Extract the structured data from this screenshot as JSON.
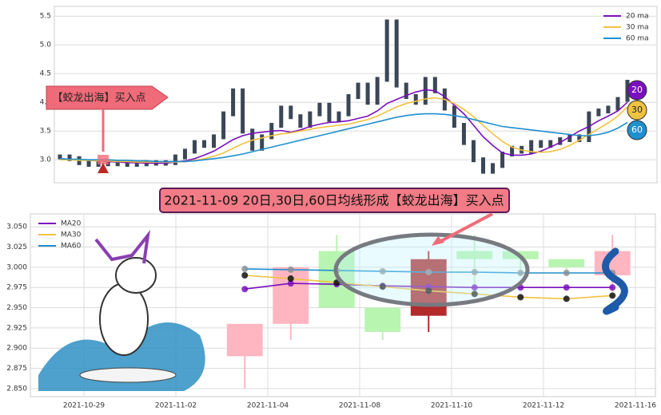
{
  "chart_data": [
    {
      "type": "line",
      "grid": true,
      "legend": "upper right",
      "categories": [
        null,
        null,
        null,
        null,
        null,
        null,
        null,
        null,
        null,
        null,
        null,
        null,
        null,
        null,
        null,
        null,
        null,
        null,
        null,
        null,
        null,
        null,
        null,
        null,
        null,
        null,
        null,
        null,
        null,
        null,
        null,
        null,
        null,
        null,
        null,
        null,
        null,
        null,
        null,
        null,
        null,
        null,
        null,
        null,
        null,
        null,
        null,
        null,
        null,
        null,
        null,
        null,
        null,
        null,
        null,
        null,
        null,
        null,
        null,
        null
      ],
      "values": [
        3.05,
        3.02,
        2.95,
        2.92,
        2.93,
        2.95,
        2.93,
        2.92,
        2.93,
        2.95,
        2.94,
        2.95,
        3.05,
        3.15,
        3.3,
        3.25,
        3.4,
        3.8,
        4.2,
        3.5,
        3.2,
        3.4,
        3.6,
        3.9,
        3.75,
        3.6,
        3.8,
        3.95,
        3.7,
        3.8,
        4.1,
        4.3,
        4.0,
        4.4,
        5.4,
        4.3,
        4.1,
        4.0,
        4.4,
        4.2,
        3.9,
        3.6,
        3.3,
        3.0,
        2.8,
        2.9,
        3.1,
        3.2,
        3.15,
        3.3,
        3.25,
        3.3,
        3.35,
        3.4,
        3.35,
        3.8,
        3.85,
        3.9,
        4.05,
        4.35
      ],
      "color": "#3b4656",
      "series": [
        {
          "name": "20 ma",
          "color": "#7a10bd",
          "values": [
            3.02,
            3.01,
            3.0,
            2.99,
            2.98,
            2.97,
            2.96,
            2.95,
            2.95,
            2.94,
            2.94,
            2.94,
            2.96,
            2.98,
            3.02,
            3.08,
            3.15,
            3.25,
            3.35,
            3.42,
            3.46,
            3.48,
            3.5,
            3.51,
            3.48,
            3.52,
            3.58,
            3.62,
            3.65,
            3.66,
            3.68,
            3.72,
            3.76,
            3.85,
            3.98,
            4.05,
            4.12,
            4.18,
            4.22,
            4.2,
            4.1,
            3.95,
            3.8,
            3.6,
            3.4,
            3.25,
            3.12,
            3.08,
            3.08,
            3.1,
            3.15,
            3.22,
            3.3,
            3.4,
            3.5,
            3.58,
            3.68,
            3.76,
            3.85,
            4.0
          ]
        },
        {
          "name": "30 ma",
          "color": "#f0c23e",
          "values": [
            3.0,
            3.0,
            2.99,
            2.99,
            2.98,
            2.98,
            2.97,
            2.97,
            2.96,
            2.96,
            2.96,
            2.96,
            2.96,
            2.97,
            2.99,
            3.02,
            3.06,
            3.12,
            3.2,
            3.28,
            3.34,
            3.38,
            3.42,
            3.45,
            3.47,
            3.5,
            3.53,
            3.56,
            3.58,
            3.6,
            3.62,
            3.66,
            3.7,
            3.76,
            3.84,
            3.92,
            3.98,
            4.02,
            4.06,
            4.08,
            4.05,
            3.98,
            3.88,
            3.75,
            3.6,
            3.45,
            3.32,
            3.22,
            3.17,
            3.14,
            3.13,
            3.14,
            3.18,
            3.25,
            3.34,
            3.44,
            3.54,
            3.64,
            3.76,
            3.92
          ]
        },
        {
          "name": "60 ma",
          "color": "#1f8fcf",
          "values": [
            3.02,
            3.01,
            3.01,
            3.0,
            3.0,
            3.0,
            2.99,
            2.99,
            2.98,
            2.98,
            2.97,
            2.97,
            2.97,
            2.97,
            2.98,
            3.0,
            3.02,
            3.04,
            3.07,
            3.1,
            3.14,
            3.18,
            3.22,
            3.26,
            3.3,
            3.34,
            3.38,
            3.42,
            3.46,
            3.5,
            3.54,
            3.58,
            3.62,
            3.66,
            3.7,
            3.74,
            3.77,
            3.79,
            3.8,
            3.8,
            3.79,
            3.77,
            3.74,
            3.7,
            3.66,
            3.62,
            3.58,
            3.56,
            3.54,
            3.52,
            3.5,
            3.48,
            3.46,
            3.44,
            3.42,
            3.42,
            3.44,
            3.48,
            3.55,
            3.65
          ]
        }
      ],
      "ylim": [
        2.6,
        5.67
      ],
      "yticks": [
        {
          "value": 3,
          "label": "3.0"
        },
        3.5,
        {
          "value": 4,
          "label": "4.0"
        },
        4.5,
        {
          "value": 5,
          "label": "5.0"
        },
        5.5
      ],
      "annotations": {
        "signal": "【蛟龙出海】买入点",
        "badges": [
          "20",
          "30",
          "60"
        ],
        "banner": "2021-11-09 20日,30日,60日均线形成【蛟龙出海】买入点"
      }
    },
    {
      "type": "candlestick",
      "grid": true,
      "legend": "upper left",
      "categories": [
        "2021-10-29",
        null,
        "2021-11-02",
        null,
        "2021-11-04",
        null,
        "2021-11-08",
        null,
        "2021-11-10",
        null,
        "2021-11-12",
        null,
        "2021-11-16"
      ],
      "open": [
        null,
        null,
        null,
        2.89,
        2.93,
        3.02,
        2.95,
        2.94,
        3.02,
        3.02,
        3.01,
        2.99,
        null
      ],
      "high": [
        null,
        null,
        null,
        2.93,
        3.0,
        3.04,
        2.95,
        3.02,
        3.04,
        3.02,
        3.01,
        3.04,
        null
      ],
      "low": [
        null,
        null,
        null,
        2.85,
        2.91,
        2.95,
        2.91,
        2.92,
        2.97,
        2.99,
        2.99,
        2.97,
        null
      ],
      "close": [
        null,
        null,
        null,
        2.93,
        3.0,
        2.95,
        2.92,
        3.01,
        3.01,
        3.01,
        3.0,
        3.02,
        null
      ],
      "candle_colors": [
        null,
        null,
        null,
        "#ffb6c1",
        "#ffb6c1",
        "#b8f5b0",
        "#b8f5b0",
        "#b22a2a",
        "#b8f5b0",
        "#b8f5b0",
        "#b8f5b0",
        "#ffb6c1",
        null
      ],
      "series": [
        {
          "name": "MA20",
          "color": "#7a10bd",
          "values": [
            null,
            null,
            null,
            2.973,
            2.98,
            2.979,
            2.977,
            2.976,
            2.975,
            2.975,
            2.975,
            2.975,
            null
          ]
        },
        {
          "name": "MA30",
          "color": "#f0c23e",
          "values": [
            null,
            null,
            null,
            2.99,
            2.986,
            2.981,
            2.976,
            2.971,
            2.967,
            2.963,
            2.961,
            2.965,
            null
          ]
        },
        {
          "name": "MA60",
          "color": "#1f8fcf",
          "values": [
            null,
            null,
            null,
            2.998,
            2.997,
            2.996,
            2.995,
            2.994,
            2.994,
            2.993,
            2.993,
            2.993,
            null
          ]
        }
      ],
      "ylim": [
        2.84,
        3.066
      ],
      "yticks": [
        {
          "value": 2.85,
          "label": "2.850"
        },
        {
          "value": 2.875,
          "label": "2.875"
        },
        {
          "value": 2.9,
          "label": "2.900"
        },
        {
          "value": 2.925,
          "label": "2.925"
        },
        {
          "value": 2.95,
          "label": "2.950"
        },
        {
          "value": 2.975,
          "label": "2.975"
        },
        {
          "value": 3,
          "label": "3.000"
        },
        {
          "value": 3.025,
          "label": "3.025"
        },
        {
          "value": 3.05,
          "label": "3.050"
        }
      ]
    }
  ]
}
